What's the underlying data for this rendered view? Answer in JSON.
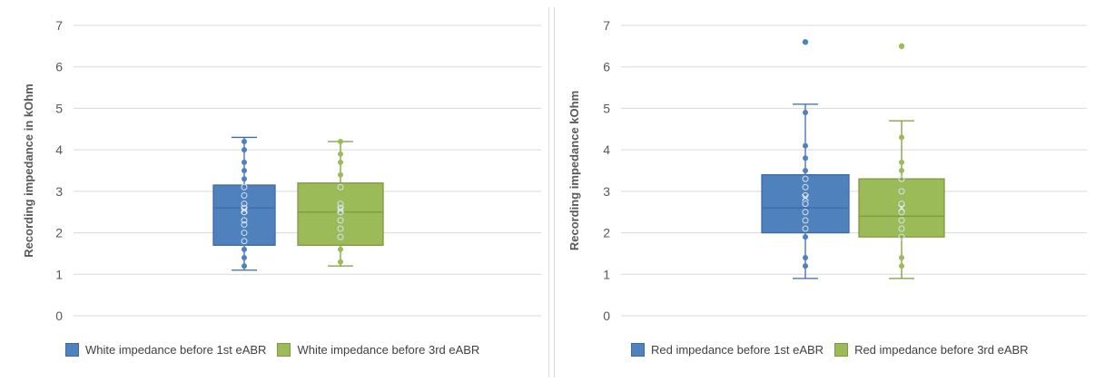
{
  "colors": {
    "blue_fill": "#4f81bd",
    "blue_stroke": "#3d6aa6",
    "green_fill": "#9bbb59",
    "green_stroke": "#7d9a3e",
    "grid": "#d9d9d9",
    "axis_text": "#595959"
  },
  "chart_data": [
    {
      "type": "box",
      "ylabel": "Recording impedance in kOhm",
      "ylim": [
        0,
        7
      ],
      "yticks": [
        "0",
        "1",
        "2",
        "3",
        "4",
        "5",
        "6",
        "7"
      ],
      "grid": true,
      "legend_position": "bottom-left",
      "series": [
        {
          "name": "White impedance before 1st eABR",
          "color": "#4f81bd",
          "min": 1.1,
          "q1": 1.7,
          "median": 2.6,
          "q3": 3.15,
          "max": 4.3,
          "mean": 2.55,
          "points": [
            1.2,
            1.4,
            1.6,
            1.8,
            2.0,
            2.2,
            2.3,
            2.5,
            2.6,
            2.7,
            2.9,
            3.1,
            3.3,
            3.5,
            3.7,
            4.0,
            4.2
          ],
          "outliers": []
        },
        {
          "name": "White impedance before 3rd eABR",
          "color": "#9bbb59",
          "min": 1.2,
          "q1": 1.7,
          "median": 2.5,
          "q3": 3.2,
          "max": 4.2,
          "mean": 2.55,
          "points": [
            1.3,
            1.6,
            1.9,
            2.1,
            2.3,
            2.5,
            2.6,
            2.7,
            3.1,
            3.4,
            3.7,
            3.9,
            4.2
          ],
          "outliers": []
        }
      ]
    },
    {
      "type": "box",
      "ylabel": "Recording impedance  kOhm",
      "ylim": [
        0,
        7
      ],
      "yticks": [
        "0",
        "1",
        "2",
        "3",
        "4",
        "5",
        "6",
        "7"
      ],
      "grid": true,
      "legend_position": "bottom-left",
      "series": [
        {
          "name": "Red impedance before 1st eABR",
          "color": "#4f81bd",
          "min": 0.9,
          "q1": 2.0,
          "median": 2.6,
          "q3": 3.4,
          "max": 5.1,
          "mean": 2.85,
          "points": [
            1.2,
            1.4,
            1.9,
            2.1,
            2.3,
            2.5,
            2.7,
            2.9,
            3.1,
            3.3,
            3.5,
            3.8,
            4.1,
            4.9
          ],
          "outliers": [
            6.6
          ]
        },
        {
          "name": "Red impedance before 3rd eABR",
          "color": "#9bbb59",
          "min": 0.9,
          "q1": 1.9,
          "median": 2.4,
          "q3": 3.3,
          "max": 4.7,
          "mean": 2.6,
          "points": [
            1.2,
            1.4,
            1.9,
            2.1,
            2.3,
            2.5,
            2.7,
            3.0,
            3.3,
            3.5,
            3.7,
            4.3
          ],
          "outliers": [
            6.5
          ]
        }
      ]
    }
  ]
}
